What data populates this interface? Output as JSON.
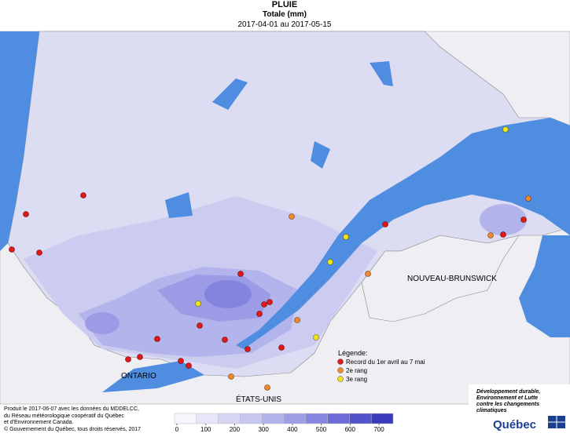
{
  "header": {
    "title": "PLUIE",
    "subtitle": "Totale (mm)",
    "period": "2017-04-01 au 2017-05-15"
  },
  "regions": {
    "ontario": "ONTARIO",
    "usa": "ÉTATS-UNIS",
    "nb": "NOUVEAU-BRUNSWICK"
  },
  "legend": {
    "title": "Légende:",
    "items": [
      {
        "label": "Record du 1er avril au 7 mai",
        "color": "#e01818"
      },
      {
        "label": "2e rang",
        "color": "#f08a30"
      },
      {
        "label": "3e rang",
        "color": "#f2e21a"
      }
    ]
  },
  "colorbar": {
    "ticks": [
      0,
      100,
      200,
      300,
      400,
      500,
      600,
      700
    ],
    "colors": [
      "#f6f6fc",
      "#e6e6f8",
      "#d6d6f3",
      "#c6c6ef",
      "#b2b2eb",
      "#9e9ee6",
      "#8686e0",
      "#6c6cd8",
      "#5252cc",
      "#3a3abf"
    ]
  },
  "credits": [
    "Produit le 2017-06-07 avec les données du MDDELCC,",
    "du Réseau météorologique coopératif du Québec",
    "et d'Environnement Canada.",
    "© Gouvernement du Québec, tous droits réservés, 2017"
  ],
  "logo": {
    "lines": [
      "Développement durable,",
      "Environnement et Lutte",
      "contre les changements",
      "climatiques"
    ],
    "name": "Québec"
  }
}
